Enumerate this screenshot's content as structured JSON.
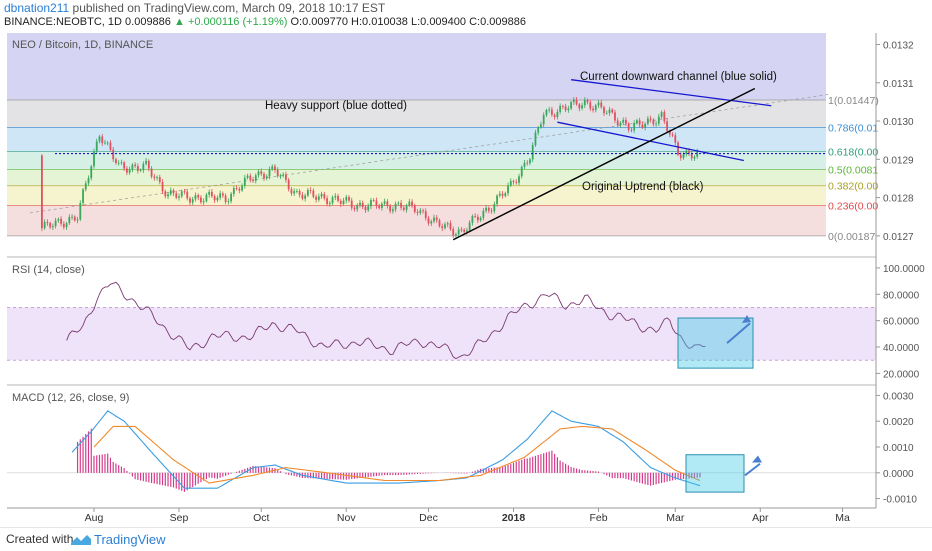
{
  "header": {
    "author": "dbnation211",
    "published": "published on TradingView.com, March 09, 2018 10:17 EST",
    "symbol": "BINANCE:NEOBTC, 1D",
    "close": "0.009886",
    "change": "+0.000116 (+1.19%)",
    "ohlc": "O:0.009770 H:0.010038 L:0.009400 C:0.009886"
  },
  "footer": {
    "created_with": "Created with",
    "brand": "TradingView"
  },
  "colors": {
    "up": "#3aa75c",
    "down": "#e0505f",
    "rsi": "#7b3a72",
    "macd": "#3b9ee3",
    "signal": "#f08a2c",
    "hist": "#d43b8c",
    "blue_line": "#1616d0",
    "black_line": "#000000",
    "highlight": "#3cc8e6"
  },
  "chart_data": [
    {
      "type": "candlestick",
      "title": "NEO / Bitcoin, 1D, BINANCE",
      "x_labels": [
        "Aug",
        "Sep",
        "Oct",
        "Nov",
        "Dec",
        "2018",
        "Feb",
        "Mar",
        "Apr",
        "Ma"
      ],
      "y_ticks": [
        "0.0132",
        "0.0131",
        "0.0130",
        "0.0129",
        "0.0128",
        "0.0127"
      ],
      "ylim": [
        0.01265,
        0.01323
      ],
      "fib_levels": [
        {
          "label": "1(0.01447)",
          "price": 0.013055,
          "band": "#e3e3e6"
        },
        {
          "label": "0.786(0.01",
          "price": 0.012983,
          "band": "#cfe6f6"
        },
        {
          "label": "0.618(0.00",
          "price": 0.01292,
          "band": "#d7f0e6"
        },
        {
          "label": "0.5(0.0081",
          "price": 0.012873,
          "band": "#e4f4d4"
        },
        {
          "label": "0.382(0.00",
          "price": 0.012831,
          "band": "#f6f3cf"
        },
        {
          "label": "0.236(0.00",
          "price": 0.012779,
          "band": "#f5dede"
        },
        {
          "label": "0(0.00187",
          "price": 0.0127,
          "band": ""
        }
      ],
      "label_colors": [
        "#888888",
        "#3b8fd6",
        "#2aa07a",
        "#5bb533",
        "#a8a020",
        "#e04a4a",
        "#888888"
      ],
      "annotations": {
        "heavy_support": "Heavy support (blue dotted)",
        "channel": "Current downward channel (blue solid)",
        "uptrend": "Original Uptrend (black)"
      },
      "anchors": [
        [
          "2017-07-13",
          0.01272
        ],
        [
          "2017-07-26",
          0.01275
        ],
        [
          "2017-08-03",
          0.01297
        ],
        [
          "2017-08-10",
          0.01288
        ],
        [
          "2017-08-20",
          0.01288
        ],
        [
          "2017-08-28",
          0.01281
        ],
        [
          "2017-09-05",
          0.0128
        ],
        [
          "2017-09-18",
          0.0128
        ],
        [
          "2017-09-29",
          0.01286
        ],
        [
          "2017-10-06",
          0.01287
        ],
        [
          "2017-10-14",
          0.01281
        ],
        [
          "2017-10-24",
          0.0128
        ],
        [
          "2017-11-05",
          0.01278
        ],
        [
          "2017-11-18",
          0.01278
        ],
        [
          "2017-11-27",
          0.01277
        ],
        [
          "2017-12-04",
          0.01273
        ],
        [
          "2017-12-13",
          0.01271
        ],
        [
          "2017-12-24",
          0.01278
        ],
        [
          "2017-12-31",
          0.01283
        ],
        [
          "2018-01-07",
          0.01291
        ],
        [
          "2018-01-12",
          0.01302
        ],
        [
          "2018-01-18",
          0.01303
        ],
        [
          "2018-01-27",
          0.01305
        ],
        [
          "2018-02-05",
          0.01302
        ],
        [
          "2018-02-13",
          0.01298
        ],
        [
          "2018-02-19",
          0.013
        ],
        [
          "2018-02-24",
          0.01301
        ],
        [
          "2018-03-02",
          0.01292
        ],
        [
          "2018-03-09",
          0.01291
        ]
      ]
    },
    {
      "type": "line",
      "title": "RSI (14, close)",
      "y_ticks": [
        "100.0000",
        "80.0000",
        "60.0000",
        "40.0000",
        "20.0000"
      ],
      "ylim": [
        15,
        106
      ],
      "band": [
        30,
        70
      ],
      "anchors": [
        [
          "2017-07-22",
          45
        ],
        [
          "2017-07-28",
          55
        ],
        [
          "2017-08-02",
          78
        ],
        [
          "2017-08-07",
          88
        ],
        [
          "2017-08-14",
          78
        ],
        [
          "2017-08-24",
          60
        ],
        [
          "2017-09-05",
          38
        ],
        [
          "2017-09-13",
          48
        ],
        [
          "2017-09-28",
          48
        ],
        [
          "2017-10-05",
          58
        ],
        [
          "2017-10-14",
          52
        ],
        [
          "2017-10-24",
          40
        ],
        [
          "2017-11-05",
          44
        ],
        [
          "2017-11-18",
          38
        ],
        [
          "2017-11-28",
          45
        ],
        [
          "2017-12-05",
          40
        ],
        [
          "2017-12-13",
          33
        ],
        [
          "2017-12-20",
          42
        ],
        [
          "2017-12-30",
          62
        ],
        [
          "2018-01-06",
          72
        ],
        [
          "2018-01-13",
          80
        ],
        [
          "2018-01-20",
          72
        ],
        [
          "2018-01-27",
          76
        ],
        [
          "2018-02-05",
          65
        ],
        [
          "2018-02-12",
          60
        ],
        [
          "2018-02-22",
          52
        ],
        [
          "2018-02-27",
          60
        ],
        [
          "2018-03-04",
          45
        ],
        [
          "2018-03-09",
          37
        ],
        [
          "2018-03-12",
          42
        ]
      ]
    },
    {
      "type": "line",
      "title": "MACD (12, 26, close, 9)",
      "y_ticks": [
        "0.0030",
        "0.0020",
        "0.0010",
        "0.0000",
        "-0.0010"
      ],
      "ylim": [
        -0.00125,
        0.00325
      ],
      "series": [
        {
          "name": "MACD",
          "anchors": [
            [
              "2017-07-24",
              0.0008
            ],
            [
              "2017-07-31",
              0.0016
            ],
            [
              "2017-08-06",
              0.0024
            ],
            [
              "2017-08-12",
              0.002
            ],
            [
              "2017-08-22",
              0.0008
            ],
            [
              "2017-09-03",
              -0.0006
            ],
            [
              "2017-09-15",
              -0.0006
            ],
            [
              "2017-09-28",
              0.0002
            ],
            [
              "2017-10-06",
              0.0003
            ],
            [
              "2017-10-16",
              -0.0001
            ],
            [
              "2017-11-01",
              -0.0004
            ],
            [
              "2017-11-20",
              -0.0004
            ],
            [
              "2017-12-05",
              -0.0003
            ],
            [
              "2017-12-15",
              -0.0002
            ],
            [
              "2017-12-28",
              0.0005
            ],
            [
              "2018-01-06",
              0.0013
            ],
            [
              "2018-01-15",
              0.0024
            ],
            [
              "2018-01-22",
              0.002
            ],
            [
              "2018-02-01",
              0.0018
            ],
            [
              "2018-02-10",
              0.0012
            ],
            [
              "2018-02-20",
              0.0002
            ],
            [
              "2018-03-01",
              -0.0002
            ],
            [
              "2018-03-10",
              -0.0005
            ]
          ]
        },
        {
          "name": "Signal",
          "anchors": [
            [
              "2017-08-01",
              0.001
            ],
            [
              "2017-08-08",
              0.0018
            ],
            [
              "2017-08-16",
              0.0018
            ],
            [
              "2017-08-30",
              0.0005
            ],
            [
              "2017-09-12",
              -0.0004
            ],
            [
              "2017-09-28",
              -0.0001
            ],
            [
              "2017-10-10",
              0.0002
            ],
            [
              "2017-10-25",
              0.0
            ],
            [
              "2017-11-15",
              -0.0003
            ],
            [
              "2017-12-05",
              -0.0003
            ],
            [
              "2017-12-20",
              -0.0001
            ],
            [
              "2018-01-05",
              0.0006
            ],
            [
              "2018-01-18",
              0.0017
            ],
            [
              "2018-01-26",
              0.0018
            ],
            [
              "2018-02-06",
              0.0017
            ],
            [
              "2018-02-18",
              0.0009
            ],
            [
              "2018-03-01",
              0.0001
            ],
            [
              "2018-03-10",
              -0.0003
            ]
          ]
        }
      ]
    }
  ]
}
